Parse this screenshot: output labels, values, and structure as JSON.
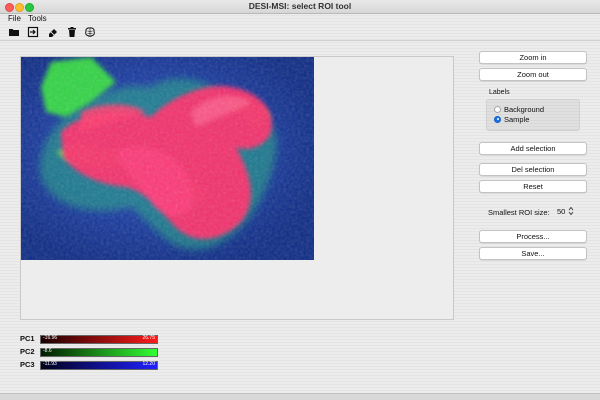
{
  "window": {
    "title": "DESI-MSI: select ROI tool"
  },
  "menu": {
    "items": [
      "File",
      "Tools"
    ]
  },
  "toolbar": {
    "icons": [
      "folder-open-icon",
      "export-icon",
      "eraser-icon",
      "trash-icon",
      "brain-icon"
    ]
  },
  "buttons": {
    "zoom_in": "Zoom in",
    "zoom_out": "Zoom out",
    "add_selection": "Add selection",
    "del_selection": "Del selection",
    "reset": "Reset",
    "process": "Process...",
    "save": "Save..."
  },
  "labels": {
    "title": "Labels",
    "options": [
      "Background",
      "Sample"
    ],
    "selected": "Sample"
  },
  "roi": {
    "label": "Smallest ROI size:",
    "value": "50"
  },
  "pc_bars": [
    {
      "label": "PC1",
      "min": "-16.96",
      "max": "26.75",
      "color_from": "#1a0000",
      "color_to": "#ff1a1a"
    },
    {
      "label": "PC2",
      "min": "-8.6",
      "max": "",
      "color_from": "#001a00",
      "color_to": "#33ff33"
    },
    {
      "label": "PC3",
      "min": "-11.93",
      "max": "12.20",
      "color_from": "#00001a",
      "color_to": "#2020ff"
    }
  ],
  "colors": {
    "accent": "#1a73e8"
  }
}
